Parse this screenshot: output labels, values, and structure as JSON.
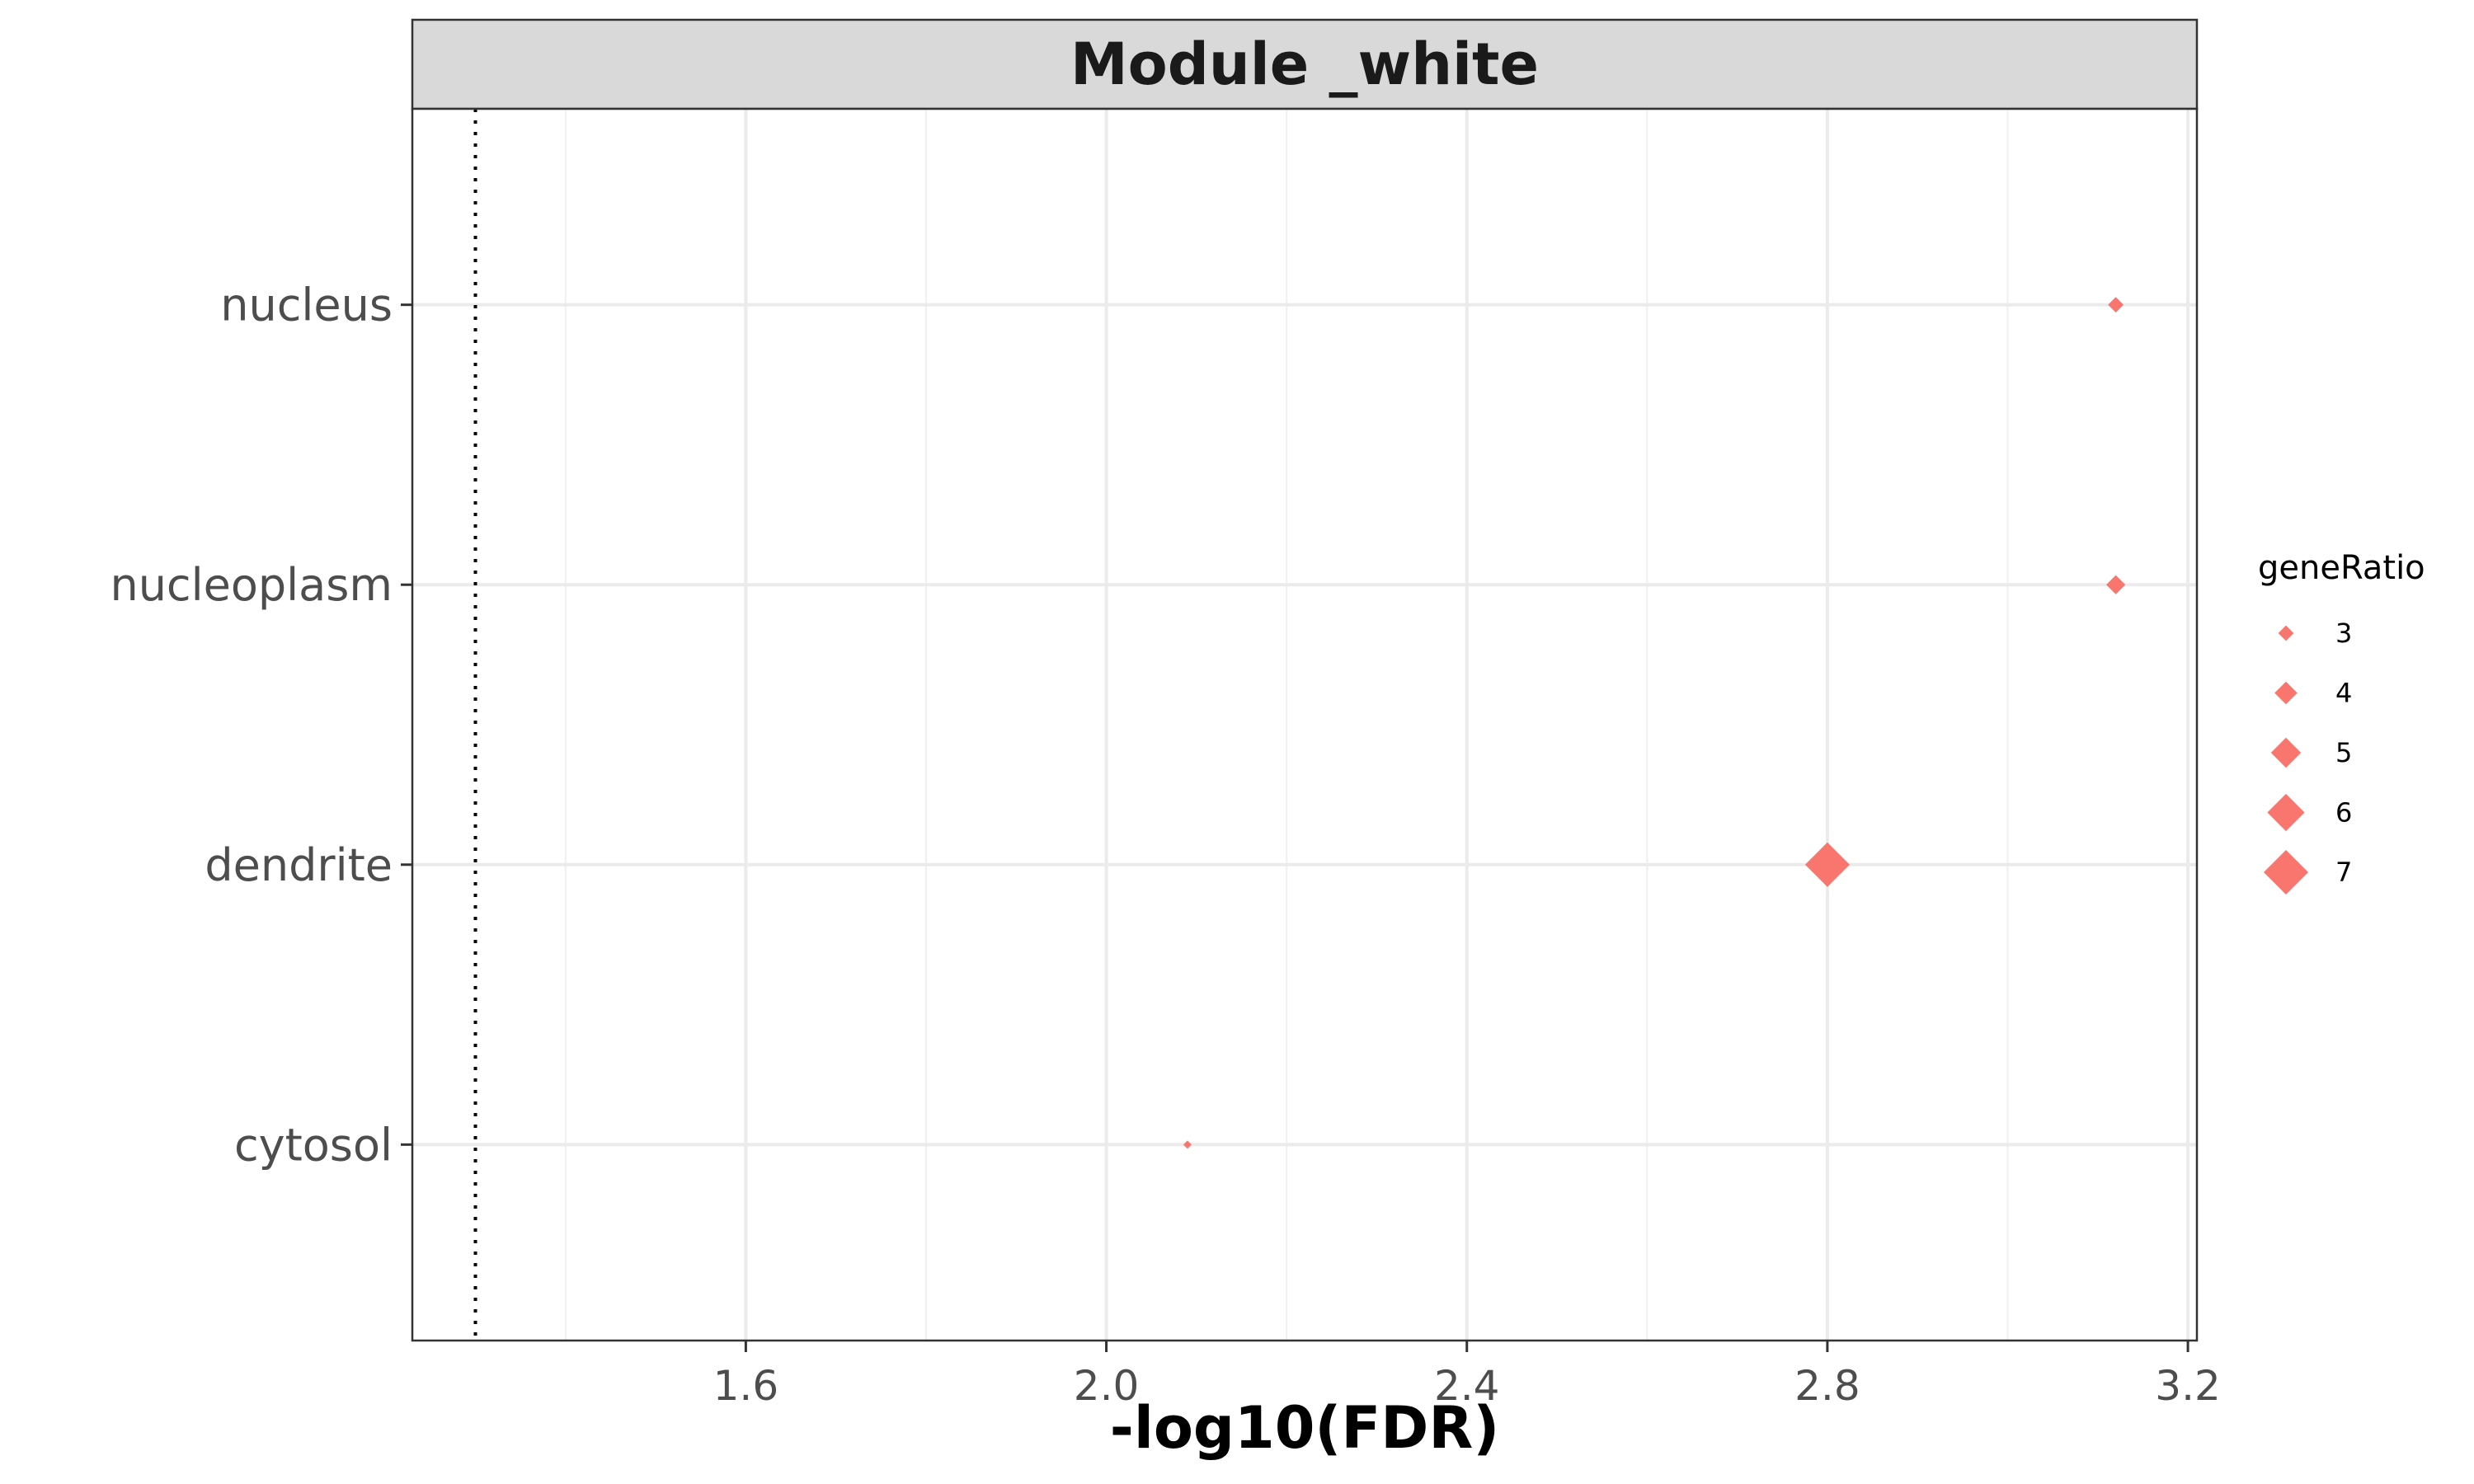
{
  "chart_data": {
    "type": "scatter",
    "panel_title": "Module _white",
    "xlabel": "-log10(FDR)",
    "ylabel": "",
    "categories": [
      "nucleus",
      "nucleoplasm",
      "dendrite",
      "cytosol"
    ],
    "xlim": [
      1.23,
      3.21
    ],
    "x_ticks": [
      1.6,
      2.0,
      2.4,
      2.8,
      3.2
    ],
    "x_tick_labels": [
      "1.6",
      "2.0",
      "2.4",
      "2.8",
      "3.2"
    ],
    "reference_line_x": 1.3,
    "grid": true,
    "points": [
      {
        "category": "nucleus",
        "x": 3.12,
        "geneRatio": 3
      },
      {
        "category": "nucleoplasm",
        "x": 3.12,
        "geneRatio": 3.5
      },
      {
        "category": "dendrite",
        "x": 2.8,
        "geneRatio": 7
      },
      {
        "category": "cytosol",
        "x": 2.09,
        "geneRatio": 2
      }
    ],
    "point_color": "#f8766d",
    "marker": "diamond",
    "legend": {
      "title": "geneRatio",
      "position": "right",
      "entries": [
        3,
        4,
        5,
        6,
        7
      ],
      "entry_labels": [
        "3",
        "4",
        "5",
        "6",
        "7"
      ]
    }
  }
}
